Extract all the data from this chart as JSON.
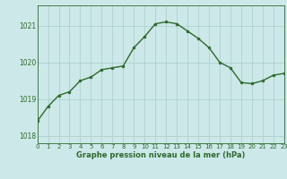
{
  "hours": [
    0,
    1,
    2,
    3,
    4,
    5,
    6,
    7,
    8,
    9,
    10,
    11,
    12,
    13,
    14,
    15,
    16,
    17,
    18,
    19,
    20,
    21,
    22,
    23
  ],
  "pressure": [
    1018.4,
    1018.8,
    1019.1,
    1019.2,
    1019.5,
    1019.6,
    1019.8,
    1019.85,
    1019.9,
    1020.4,
    1020.7,
    1021.05,
    1021.1,
    1021.05,
    1020.85,
    1020.65,
    1020.4,
    1020.0,
    1019.85,
    1019.45,
    1019.42,
    1019.5,
    1019.65,
    1019.7
  ],
  "line_color": "#2d6a2d",
  "marker_color": "#2d6a2d",
  "bg_color": "#cce8e8",
  "grid_color": "#aacccc",
  "xlabel": "Graphe pression niveau de la mer (hPa)",
  "xlabel_color": "#2d6a2d",
  "tick_color": "#2d6a2d",
  "ylim": [
    1017.8,
    1021.55
  ],
  "yticks": [
    1018,
    1019,
    1020,
    1021
  ],
  "xlim": [
    0,
    23
  ],
  "xticks": [
    0,
    1,
    2,
    3,
    4,
    5,
    6,
    7,
    8,
    9,
    10,
    11,
    12,
    13,
    14,
    15,
    16,
    17,
    18,
    19,
    20,
    21,
    22,
    23
  ]
}
